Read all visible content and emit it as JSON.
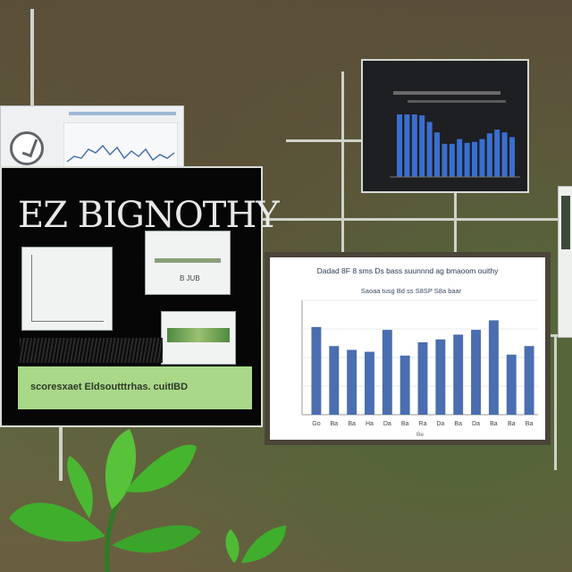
{
  "main_panel": {
    "title": "EZ BIGNOTHY",
    "band_text": "scoresxaet Eldsoutttrhas. cuitIBD",
    "card_b_caption": "B JUB"
  },
  "bar_chart": {
    "title": "Dadad 8F 8 sms Ds bass suunnnd ag bmaoom ouithy",
    "subtitle": "Saoaa tusg Bd ss S8SP S8a baar",
    "categories": [
      "Go",
      "Ba",
      "Ba",
      "Ha",
      "Da",
      "Ba",
      "Ra",
      "Da",
      "Ba",
      "Da",
      "Ba",
      "Ba",
      "Ba"
    ],
    "axis_caption": "Be",
    "values": [
      9.2,
      7.2,
      6.8,
      6.6,
      8.9,
      6.2,
      7.6,
      7.9,
      8.4,
      8.9,
      9.9,
      6.3,
      7.2
    ],
    "ylim": [
      0,
      12
    ],
    "bar_color": "#4a6eb0"
  },
  "dark_chart": {
    "values": [
      6.6,
      6.6,
      6.6,
      6.5,
      5.8,
      4.7,
      3.5,
      3.5,
      4.0,
      3.6,
      3.7,
      4.0,
      4.6,
      5.0,
      4.7,
      4.2
    ],
    "bar_color": "#3a6fd0"
  },
  "colors": {
    "accent_green": "#a9d889",
    "leaf_green": "#3fae2c"
  }
}
